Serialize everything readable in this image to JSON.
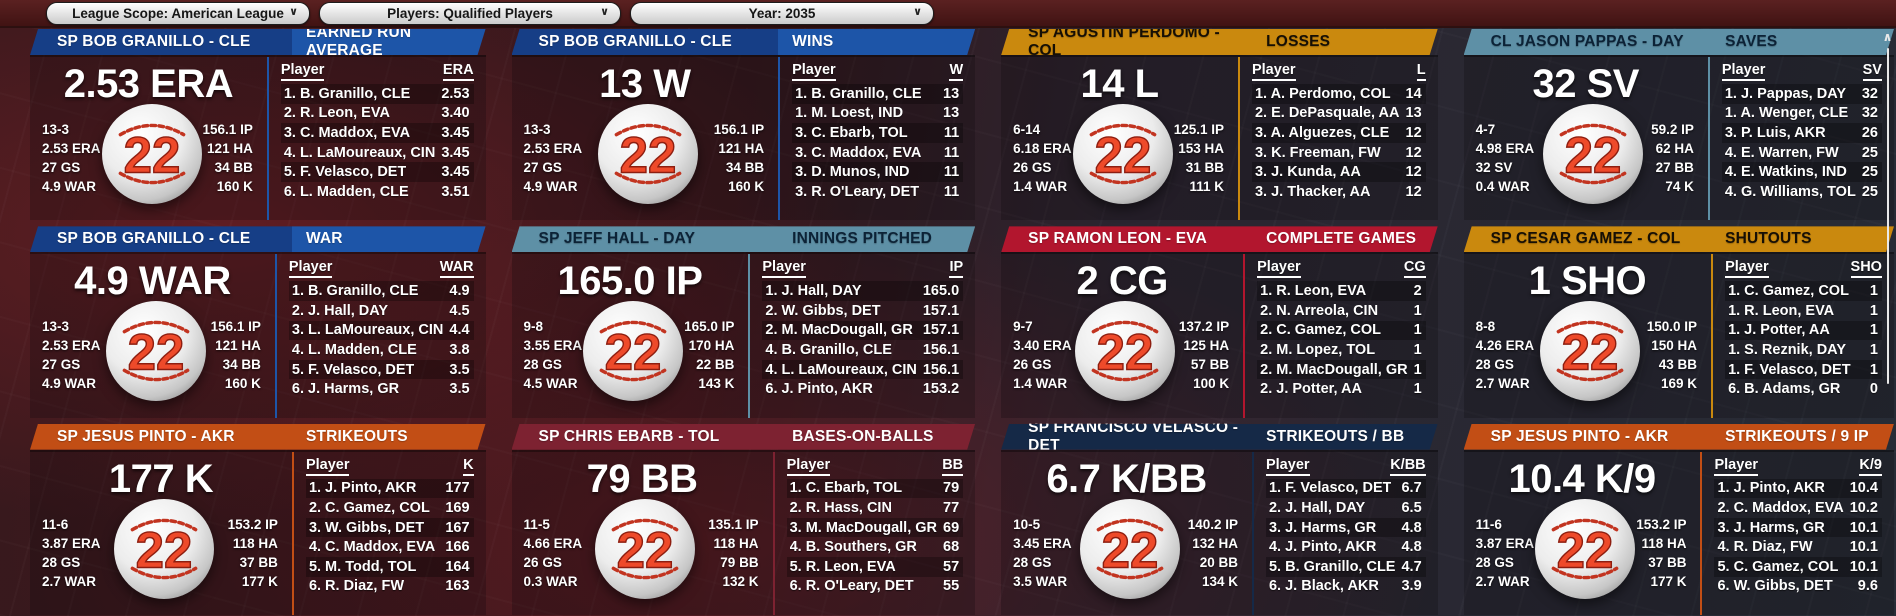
{
  "toolbar": {
    "dropdowns": [
      {
        "label": "League Scope: American League"
      },
      {
        "label": "Players: Qualified Players"
      },
      {
        "label": "Year: 2035"
      }
    ],
    "chevron": "∨"
  },
  "scrollbar": {
    "up_arrow": "∧"
  },
  "panels": [
    {
      "player_header": "SP BOB GRANILLO - CLE",
      "stat_header": "EARNED RUN AVERAGE",
      "big_stat": "2.53 ERA",
      "ball_number": "22",
      "left_stats": [
        "13-3",
        "2.53 ERA",
        "27 GS",
        "4.9 WAR"
      ],
      "right_stats": [
        "156.1 IP",
        "121 HA",
        "34 BB",
        "160 K"
      ],
      "colors": {
        "header_bg": "#163E86",
        "stat_header_bg": "#1D55A8",
        "header_fg": "#FFFFFF"
      },
      "list": {
        "col_player": "Player",
        "col_value": "ERA",
        "rows": [
          {
            "name": "1. B. Granillo, CLE",
            "value": "2.53"
          },
          {
            "name": "2. R. Leon, EVA",
            "value": "3.40"
          },
          {
            "name": "3. C. Maddox, EVA",
            "value": "3.45"
          },
          {
            "name": "4. L. LaMoureaux, CIN",
            "value": "3.45"
          },
          {
            "name": "5. F. Velasco, DET",
            "value": "3.45"
          },
          {
            "name": "6. L. Madden, CLE",
            "value": "3.51"
          }
        ]
      }
    },
    {
      "player_header": "SP BOB GRANILLO - CLE",
      "stat_header": "WINS",
      "big_stat": "13 W",
      "ball_number": "22",
      "left_stats": [
        "13-3",
        "2.53 ERA",
        "27 GS",
        "4.9 WAR"
      ],
      "right_stats": [
        "156.1 IP",
        "121 HA",
        "34 BB",
        "160 K"
      ],
      "colors": {
        "header_bg": "#163E86",
        "stat_header_bg": "#1D55A8",
        "header_fg": "#FFFFFF"
      },
      "list": {
        "col_player": "Player",
        "col_value": "W",
        "rows": [
          {
            "name": "1. B. Granillo, CLE",
            "value": "13"
          },
          {
            "name": "1. M. Loest, IND",
            "value": "13"
          },
          {
            "name": "3. C. Ebarb, TOL",
            "value": "11"
          },
          {
            "name": "3. C. Maddox, EVA",
            "value": "11"
          },
          {
            "name": "3. D. Munos, IND",
            "value": "11"
          },
          {
            "name": "3. R. O'Leary, DET",
            "value": "11"
          }
        ]
      }
    },
    {
      "player_header": "SP AGUSTIN PERDOMO - COL",
      "stat_header": "LOSSES",
      "big_stat": "14 L",
      "ball_number": "22",
      "left_stats": [
        "6-14",
        "6.18 ERA",
        "26 GS",
        "1.4 WAR"
      ],
      "right_stats": [
        "125.1 IP",
        "153 HA",
        "31 BB",
        "111 K"
      ],
      "colors": {
        "header_bg": "#CA890E",
        "stat_header_bg": "#CA890E",
        "header_fg": "#160F05"
      },
      "list": {
        "col_player": "Player",
        "col_value": "L",
        "rows": [
          {
            "name": "1. A. Perdomo, COL",
            "value": "14"
          },
          {
            "name": "2. E. DePasquale, AA",
            "value": "13"
          },
          {
            "name": "3. A. Alguezes, CLE",
            "value": "12"
          },
          {
            "name": "3. K. Freeman, FW",
            "value": "12"
          },
          {
            "name": "3. J. Kunda, AA",
            "value": "12"
          },
          {
            "name": "3. J. Thacker, AA",
            "value": "12"
          }
        ]
      }
    },
    {
      "player_header": "CL JASON PAPPAS - DAY",
      "stat_header": "SAVES",
      "big_stat": "32 SV",
      "ball_number": "22",
      "left_stats": [
        "4-7",
        "4.98 ERA",
        "32 SV",
        "0.4 WAR"
      ],
      "right_stats": [
        "59.2 IP",
        "62 HA",
        "27 BB",
        "74 K"
      ],
      "colors": {
        "header_bg": "#5E90A6",
        "stat_header_bg": "#5E90A6",
        "header_fg": "#0C2236"
      },
      "list": {
        "col_player": "Player",
        "col_value": "SV",
        "rows": [
          {
            "name": "1. J. Pappas, DAY",
            "value": "32"
          },
          {
            "name": "1. A. Wenger, CLE",
            "value": "32"
          },
          {
            "name": "3. P. Luis, AKR",
            "value": "26"
          },
          {
            "name": "4. E. Warren, FW",
            "value": "25"
          },
          {
            "name": "4. E. Watkins, IND",
            "value": "25"
          },
          {
            "name": "4. G. Williams, TOL",
            "value": "25"
          }
        ]
      }
    },
    {
      "player_header": "SP BOB GRANILLO - CLE",
      "stat_header": "WAR",
      "big_stat": "4.9 WAR",
      "ball_number": "22",
      "left_stats": [
        "13-3",
        "2.53 ERA",
        "27 GS",
        "4.9 WAR"
      ],
      "right_stats": [
        "156.1 IP",
        "121 HA",
        "34 BB",
        "160 K"
      ],
      "colors": {
        "header_bg": "#163E86",
        "stat_header_bg": "#1D55A8",
        "header_fg": "#FFFFFF"
      },
      "list": {
        "col_player": "Player",
        "col_value": "WAR",
        "rows": [
          {
            "name": "1. B. Granillo, CLE",
            "value": "4.9"
          },
          {
            "name": "2. J. Hall, DAY",
            "value": "4.5"
          },
          {
            "name": "3. L. LaMoureaux, CIN",
            "value": "4.4"
          },
          {
            "name": "4. L. Madden, CLE",
            "value": "3.8"
          },
          {
            "name": "5. F. Velasco, DET",
            "value": "3.5"
          },
          {
            "name": "6. J. Harms, GR",
            "value": "3.5"
          }
        ]
      }
    },
    {
      "player_header": "SP JEFF HALL - DAY",
      "stat_header": "INNINGS PITCHED",
      "big_stat": "165.0 IP",
      "ball_number": "22",
      "left_stats": [
        "9-8",
        "3.55 ERA",
        "28 GS",
        "4.5 WAR"
      ],
      "right_stats": [
        "165.0 IP",
        "170 HA",
        "22 BB",
        "143 K"
      ],
      "colors": {
        "header_bg": "#5E90A6",
        "stat_header_bg": "#5E90A6",
        "header_fg": "#0C2236"
      },
      "list": {
        "col_player": "Player",
        "col_value": "IP",
        "rows": [
          {
            "name": "1. J. Hall, DAY",
            "value": "165.0"
          },
          {
            "name": "2. W. Gibbs, DET",
            "value": "157.1"
          },
          {
            "name": "2. M. MacDougall, GR",
            "value": "157.1"
          },
          {
            "name": "4. B. Granillo, CLE",
            "value": "156.1"
          },
          {
            "name": "4. L. LaMoureaux, CIN",
            "value": "156.1"
          },
          {
            "name": "6. J. Pinto, AKR",
            "value": "153.2"
          }
        ]
      }
    },
    {
      "player_header": "SP RAMON LEON - EVA",
      "stat_header": "COMPLETE GAMES",
      "big_stat": "2 CG",
      "ball_number": "22",
      "left_stats": [
        "9-7",
        "3.40 ERA",
        "26 GS",
        "1.4 WAR"
      ],
      "right_stats": [
        "137.2 IP",
        "125 HA",
        "57 BB",
        "100 K"
      ],
      "colors": {
        "header_bg": "#B2162E",
        "stat_header_bg": "#B2162E",
        "header_fg": "#FFFFFF"
      },
      "list": {
        "col_player": "Player",
        "col_value": "CG",
        "rows": [
          {
            "name": "1. R. Leon, EVA",
            "value": "2"
          },
          {
            "name": "2. N. Arreola, CIN",
            "value": "1"
          },
          {
            "name": "2. C. Gamez, COL",
            "value": "1"
          },
          {
            "name": "2. M. Lopez, TOL",
            "value": "1"
          },
          {
            "name": "2. M. MacDougall, GR",
            "value": "1"
          },
          {
            "name": "2. J. Potter, AA",
            "value": "1"
          }
        ]
      }
    },
    {
      "player_header": "SP CESAR GAMEZ - COL",
      "stat_header": "SHUTOUTS",
      "big_stat": "1 SHO",
      "ball_number": "22",
      "left_stats": [
        "8-8",
        "4.26 ERA",
        "28 GS",
        "2.7 WAR"
      ],
      "right_stats": [
        "150.0 IP",
        "150 HA",
        "43 BB",
        "169 K"
      ],
      "colors": {
        "header_bg": "#CA890E",
        "stat_header_bg": "#CA890E",
        "header_fg": "#160F05"
      },
      "list": {
        "col_player": "Player",
        "col_value": "SHO",
        "rows": [
          {
            "name": "1. C. Gamez, COL",
            "value": "1"
          },
          {
            "name": "1. R. Leon, EVA",
            "value": "1"
          },
          {
            "name": "1. J. Potter, AA",
            "value": "1"
          },
          {
            "name": "1. S. Reznik, DAY",
            "value": "1"
          },
          {
            "name": "1. F. Velasco, DET",
            "value": "1"
          },
          {
            "name": "6. B. Adams, GR",
            "value": "0"
          }
        ]
      }
    },
    {
      "player_header": "SP JESUS PINTO - AKR",
      "stat_header": "STRIKEOUTS",
      "big_stat": "177 K",
      "ball_number": "22",
      "left_stats": [
        "11-6",
        "3.87 ERA",
        "28 GS",
        "2.7 WAR"
      ],
      "right_stats": [
        "153.2 IP",
        "118 HA",
        "37 BB",
        "177 K"
      ],
      "colors": {
        "header_bg": "#C24E15",
        "stat_header_bg": "#C24E15",
        "header_fg": "#FFFFFF"
      },
      "list": {
        "col_player": "Player",
        "col_value": "K",
        "rows": [
          {
            "name": "1. J. Pinto, AKR",
            "value": "177"
          },
          {
            "name": "2. C. Gamez, COL",
            "value": "169"
          },
          {
            "name": "3. W. Gibbs, DET",
            "value": "167"
          },
          {
            "name": "4. C. Maddox, EVA",
            "value": "166"
          },
          {
            "name": "5. M. Todd, TOL",
            "value": "164"
          },
          {
            "name": "6. R. Diaz, FW",
            "value": "163"
          }
        ]
      }
    },
    {
      "player_header": "SP CHRIS EBARB - TOL",
      "stat_header": "BASES-ON-BALLS",
      "big_stat": "79 BB",
      "ball_number": "22",
      "left_stats": [
        "11-5",
        "4.66 ERA",
        "26 GS",
        "0.3 WAR"
      ],
      "right_stats": [
        "135.1 IP",
        "118 HA",
        "79 BB",
        "132 K"
      ],
      "colors": {
        "header_bg": "#7D2231",
        "stat_header_bg": "#7D2231",
        "header_fg": "#FFFFFF"
      },
      "list": {
        "col_player": "Player",
        "col_value": "BB",
        "rows": [
          {
            "name": "1. C. Ebarb, TOL",
            "value": "79"
          },
          {
            "name": "2. R. Hass, CIN",
            "value": "77"
          },
          {
            "name": "3. M. MacDougall, GR",
            "value": "69"
          },
          {
            "name": "4. B. Southers, GR",
            "value": "68"
          },
          {
            "name": "5. R. Leon, EVA",
            "value": "57"
          },
          {
            "name": "6. R. O'Leary, DET",
            "value": "55"
          }
        ]
      }
    },
    {
      "player_header": "SP FRANCISCO VELASCO - DET",
      "stat_header": "STRIKEOUTS / BB",
      "big_stat": "6.7 K/BB",
      "ball_number": "22",
      "left_stats": [
        "10-5",
        "3.45 ERA",
        "28 GS",
        "3.5 WAR"
      ],
      "right_stats": [
        "140.2 IP",
        "132 HA",
        "20 BB",
        "134 K"
      ],
      "colors": {
        "header_bg": "#152947",
        "stat_header_bg": "#152947",
        "header_fg": "#FFFFFF"
      },
      "list": {
        "col_player": "Player",
        "col_value": "K/BB",
        "rows": [
          {
            "name": "1. F. Velasco, DET",
            "value": "6.7"
          },
          {
            "name": "2. J. Hall, DAY",
            "value": "6.5"
          },
          {
            "name": "3. J. Harms, GR",
            "value": "4.8"
          },
          {
            "name": "4. J. Pinto, AKR",
            "value": "4.8"
          },
          {
            "name": "5. B. Granillo, CLE",
            "value": "4.7"
          },
          {
            "name": "6. J. Black, AKR",
            "value": "3.9"
          }
        ]
      }
    },
    {
      "player_header": "SP JESUS PINTO - AKR",
      "stat_header": "STRIKEOUTS / 9 IP",
      "big_stat": "10.4 K/9",
      "ball_number": "22",
      "left_stats": [
        "11-6",
        "3.87 ERA",
        "28 GS",
        "2.7 WAR"
      ],
      "right_stats": [
        "153.2 IP",
        "118 HA",
        "37 BB",
        "177 K"
      ],
      "colors": {
        "header_bg": "#C24E15",
        "stat_header_bg": "#C24E15",
        "header_fg": "#FFFFFF"
      },
      "list": {
        "col_player": "Player",
        "col_value": "K/9",
        "rows": [
          {
            "name": "1. J. Pinto, AKR",
            "value": "10.4"
          },
          {
            "name": "2. C. Maddox, EVA",
            "value": "10.2"
          },
          {
            "name": "3. J. Harms, GR",
            "value": "10.1"
          },
          {
            "name": "4. R. Diaz, FW",
            "value": "10.1"
          },
          {
            "name": "5. C. Gamez, COL",
            "value": "10.1"
          },
          {
            "name": "6. W. Gibbs, DET",
            "value": "9.6"
          }
        ]
      }
    }
  ]
}
